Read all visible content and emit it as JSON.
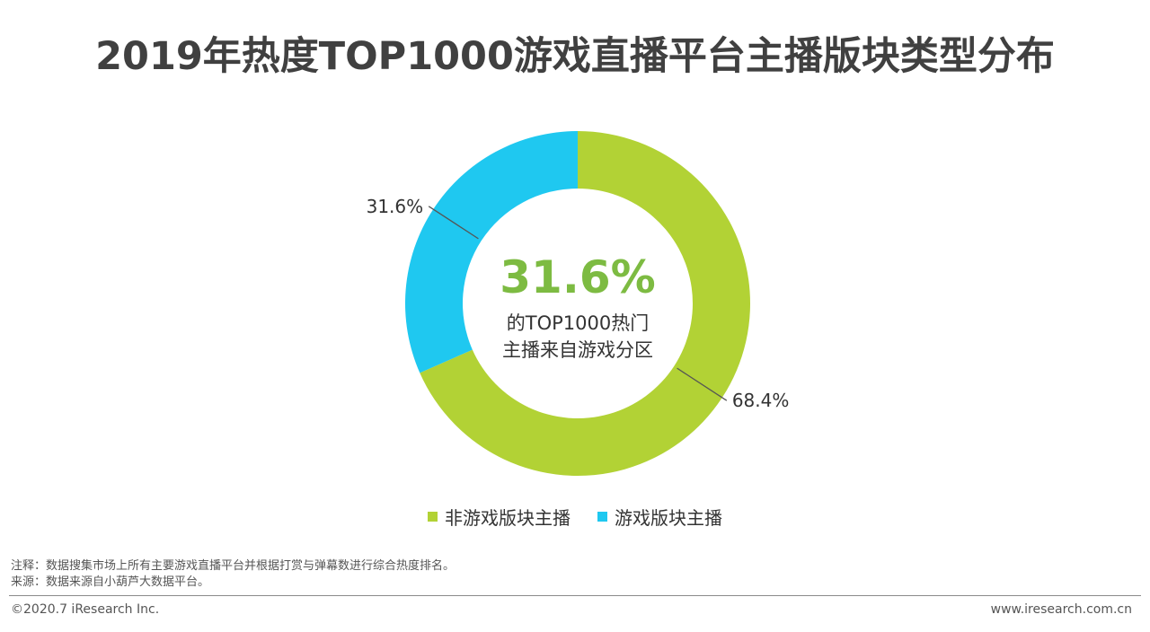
{
  "page": {
    "title": "2019年热度TOP1000游戏直播平台主播版块类型分布",
    "note": "注释：数据搜集市场上所有主要游戏直播平台并根据打赏与弹幕数进行综合热度排名。",
    "source": "来源：数据来源自小葫芦大数据平台。",
    "copyright": "©2020.7 iResearch Inc.",
    "website": "www.iresearch.com.cn"
  },
  "center": {
    "value": "31.6%",
    "line1": "的TOP1000热门",
    "line2": "主播来自游戏分区"
  },
  "chart_data": {
    "type": "pie",
    "donut": true,
    "categories": [
      "非游戏版块主播",
      "游戏版块主播"
    ],
    "values": [
      68.4,
      31.6
    ],
    "labels": [
      "68.4%",
      "31.6%"
    ],
    "colors": [
      "#b2d235",
      "#1fc8f0"
    ],
    "legend": "bottom"
  }
}
